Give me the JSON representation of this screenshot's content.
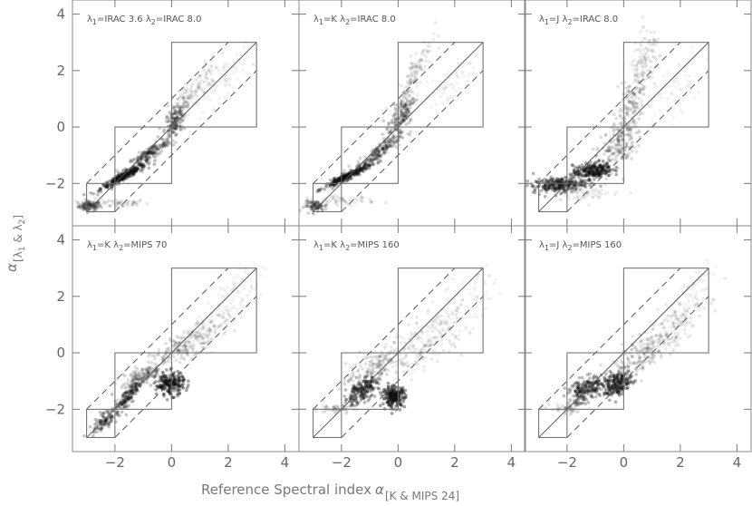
{
  "chart_data": {
    "type": "scatter",
    "layout": "2x3 panel grid, shared axes",
    "xlabel": "Reference Spectral index",
    "xlabel_sub": "[K & MIPS 24]",
    "ylabel_sub_a": "[λ",
    "ylabel_sub_b": "1",
    "ylabel_sub_c": " & λ",
    "ylabel_sub_d": "2",
    "ylabel_sub_e": "]",
    "xlim": [
      -3.5,
      4.5
    ],
    "ylim": [
      -3.5,
      4.5
    ],
    "x_ticks": [
      -2,
      0,
      2,
      4
    ],
    "y_ticks": [
      -2,
      0,
      2,
      4
    ],
    "x_tick_labels": [
      "−2",
      "0",
      "2",
      "4"
    ],
    "y_tick_labels": [
      "−2",
      "0",
      "2",
      "4"
    ],
    "point_color": "#111111",
    "overlay": {
      "one_to_one_line": [
        [
          -3,
          -3
        ],
        [
          3,
          3
        ]
      ],
      "dashed_offsets": [
        1.0,
        -1.0
      ],
      "boxes": [
        {
          "x": [
            -3,
            -2
          ],
          "y": [
            -3,
            -2
          ]
        },
        {
          "x": [
            -2,
            0
          ],
          "y": [
            -2,
            0
          ]
        },
        {
          "x": [
            0,
            3
          ],
          "y": [
            0,
            3
          ]
        }
      ]
    },
    "panels": [
      {
        "l1": "λ",
        "l1_sub": "1",
        "l1_val": "=IRAC 3.6",
        "l2": "λ",
        "l2_sub": "2",
        "l2_val": "=IRAC 8.0",
        "clusters": [
          {
            "x": -2.9,
            "y": -2.8,
            "sx": 0.2,
            "sy": 0.09,
            "n": 90,
            "o": 0.22
          },
          {
            "x": -2.0,
            "y": -2.7,
            "sx": 0.6,
            "sy": 0.08,
            "n": 60,
            "o": 0.1
          },
          {
            "x": -1.7,
            "y": -1.75,
            "sx": 0.4,
            "sy": 0.22,
            "n": 300,
            "o": 0.3,
            "c": 0.95
          },
          {
            "x": -0.8,
            "y": -0.95,
            "sx": 0.4,
            "sy": 0.28,
            "n": 200,
            "o": 0.18,
            "c": 0.9
          },
          {
            "x": 0.1,
            "y": 0.2,
            "sx": 0.2,
            "sy": 0.35,
            "n": 140,
            "o": 0.22,
            "c": 0.6
          },
          {
            "x": 0.8,
            "y": 1.3,
            "sx": 0.45,
            "sy": 0.55,
            "n": 130,
            "o": 0.08,
            "c": 0.85
          },
          {
            "x": 1.8,
            "y": 1.6,
            "sx": 0.5,
            "sy": 0.55,
            "n": 70,
            "o": 0.05,
            "c": 0.8
          }
        ]
      },
      {
        "l1": "λ",
        "l1_sub": "1",
        "l1_val": "=K",
        "l2": "λ",
        "l2_sub": "2",
        "l2_val": "=IRAC 8.0",
        "clusters": [
          {
            "x": -2.9,
            "y": -2.8,
            "sx": 0.2,
            "sy": 0.09,
            "n": 80,
            "o": 0.2
          },
          {
            "x": -2.0,
            "y": -2.6,
            "sx": 0.6,
            "sy": 0.08,
            "n": 50,
            "o": 0.1
          },
          {
            "x": -1.8,
            "y": -1.75,
            "sx": 0.4,
            "sy": 0.2,
            "n": 280,
            "o": 0.3,
            "c": 0.95
          },
          {
            "x": -0.7,
            "y": -0.9,
            "sx": 0.4,
            "sy": 0.3,
            "n": 200,
            "o": 0.17,
            "c": 0.9
          },
          {
            "x": 0.1,
            "y": 0.4,
            "sx": 0.25,
            "sy": 0.45,
            "n": 150,
            "o": 0.2,
            "c": 0.7
          },
          {
            "x": 0.6,
            "y": 1.9,
            "sx": 0.3,
            "sy": 0.7,
            "n": 130,
            "o": 0.09,
            "c": 0.85
          },
          {
            "x": 1.8,
            "y": 1.5,
            "sx": 0.55,
            "sy": 0.55,
            "n": 60,
            "o": 0.05,
            "c": 0.8
          }
        ]
      },
      {
        "l1": "λ",
        "l1_sub": "1",
        "l1_val": "=J",
        "l2": "λ",
        "l2_sub": "2",
        "l2_val": "=IRAC 8.0",
        "clusters": [
          {
            "x": -2.3,
            "y": -2.05,
            "sx": 0.45,
            "sy": 0.13,
            "n": 260,
            "o": 0.3,
            "c": 0.2
          },
          {
            "x": -1.1,
            "y": -1.55,
            "sx": 0.35,
            "sy": 0.15,
            "n": 240,
            "o": 0.35,
            "c": 0.3
          },
          {
            "x": -1.3,
            "y": -2.3,
            "sx": 0.6,
            "sy": 0.15,
            "n": 60,
            "o": 0.08
          },
          {
            "x": -0.2,
            "y": -0.6,
            "sx": 0.3,
            "sy": 0.5,
            "n": 160,
            "o": 0.15,
            "c": 0.4
          },
          {
            "x": 0.3,
            "y": 0.8,
            "sx": 0.25,
            "sy": 0.7,
            "n": 150,
            "o": 0.12,
            "c": 0.5
          },
          {
            "x": 0.8,
            "y": 2.3,
            "sx": 0.3,
            "sy": 0.6,
            "n": 110,
            "o": 0.08,
            "c": 0.5
          },
          {
            "x": 1.6,
            "y": 1.2,
            "sx": 0.6,
            "sy": 0.7,
            "n": 60,
            "o": 0.05,
            "c": 0.6
          }
        ]
      },
      {
        "l1": "λ",
        "l1_sub": "1",
        "l1_val": "=K",
        "l2": "λ",
        "l2_sub": "2",
        "l2_val": "=MIPS 70",
        "clusters": [
          {
            "x": -2.4,
            "y": -2.4,
            "sx": 0.25,
            "sy": 0.2,
            "n": 90,
            "o": 0.25,
            "c": 0.7
          },
          {
            "x": -1.5,
            "y": -1.5,
            "sx": 0.3,
            "sy": 0.35,
            "n": 180,
            "o": 0.25,
            "c": 0.9
          },
          {
            "x": -1.0,
            "y": -0.8,
            "sx": 0.4,
            "sy": 0.25,
            "n": 120,
            "o": 0.15,
            "c": 0.7
          },
          {
            "x": -0.05,
            "y": -1.1,
            "sx": 0.25,
            "sy": 0.2,
            "n": 200,
            "o": 0.38
          },
          {
            "x": 0.5,
            "y": 0.3,
            "sx": 0.6,
            "sy": 0.4,
            "n": 170,
            "o": 0.13,
            "c": 0.8
          },
          {
            "x": 1.8,
            "y": 1.3,
            "sx": 0.6,
            "sy": 0.6,
            "n": 120,
            "o": 0.06,
            "c": 0.8
          },
          {
            "x": 2.4,
            "y": 2.6,
            "sx": 0.4,
            "sy": 0.4,
            "n": 40,
            "o": 0.05,
            "c": 0.7
          }
        ]
      },
      {
        "l1": "λ",
        "l1_sub": "1",
        "l1_val": "=K",
        "l2": "λ",
        "l2_sub": "2",
        "l2_val": "=MIPS 160",
        "clusters": [
          {
            "x": -2.2,
            "y": -2.0,
            "sx": 0.3,
            "sy": 0.08,
            "n": 50,
            "o": 0.1
          },
          {
            "x": -1.3,
            "y": -1.35,
            "sx": 0.3,
            "sy": 0.25,
            "n": 200,
            "o": 0.3,
            "c": 0.6
          },
          {
            "x": -0.15,
            "y": -1.55,
            "sx": 0.2,
            "sy": 0.18,
            "n": 200,
            "o": 0.4
          },
          {
            "x": -0.8,
            "y": -0.4,
            "sx": 0.5,
            "sy": 0.35,
            "n": 120,
            "o": 0.12,
            "c": 0.7
          },
          {
            "x": 0.8,
            "y": 0.2,
            "sx": 0.8,
            "sy": 0.6,
            "n": 180,
            "o": 0.09,
            "c": 0.7
          },
          {
            "x": 2.0,
            "y": 1.4,
            "sx": 0.7,
            "sy": 0.7,
            "n": 120,
            "o": 0.06,
            "c": 0.7
          }
        ]
      },
      {
        "l1": "λ",
        "l1_sub": "1",
        "l1_val": "=J",
        "l2": "λ",
        "l2_sub": "2",
        "l2_val": "=MIPS 160",
        "clusters": [
          {
            "x": -2.0,
            "y": -2.0,
            "sx": 0.3,
            "sy": 0.1,
            "n": 50,
            "o": 0.1
          },
          {
            "x": -1.3,
            "y": -1.3,
            "sx": 0.35,
            "sy": 0.25,
            "n": 220,
            "o": 0.28,
            "c": 0.5
          },
          {
            "x": -0.2,
            "y": -1.1,
            "sx": 0.25,
            "sy": 0.22,
            "n": 200,
            "o": 0.35,
            "c": 0.3
          },
          {
            "x": 0.6,
            "y": -0.1,
            "sx": 0.6,
            "sy": 0.45,
            "n": 170,
            "o": 0.12,
            "c": 0.7
          },
          {
            "x": 1.6,
            "y": 0.9,
            "sx": 0.6,
            "sy": 0.55,
            "n": 130,
            "o": 0.09,
            "c": 0.7
          },
          {
            "x": 2.4,
            "y": 2.2,
            "sx": 0.4,
            "sy": 0.5,
            "n": 60,
            "o": 0.05,
            "c": 0.7
          }
        ]
      }
    ]
  }
}
